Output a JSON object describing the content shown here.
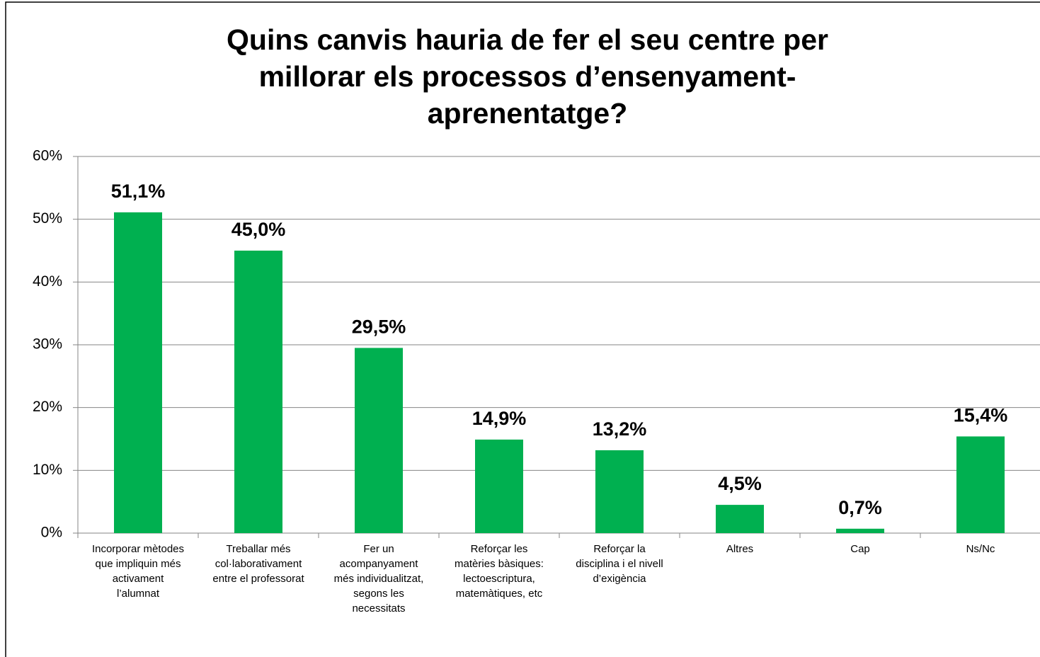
{
  "chart_data": {
    "type": "bar",
    "title": "Quins canvis hauria de fer el seu centre per\nmillorar els processos d’ensenyament-\naprenentatge?",
    "categories": [
      "Incorporar mètodes\nque impliquin més\nactivament\nl’alumnat",
      "Treballar més\ncol·laborativament\nentre el professorat",
      "Fer un\nacompanyament\nmés individualitzat,\nsegons les\nnecessitats",
      "Reforçar les\nmatèries bàsiques:\nlectoescriptura,\nmatemàtiques, etc",
      "Reforçar la\ndisciplina i el nivell\nd’exigència",
      "Altres",
      "Cap",
      "Ns/Nc"
    ],
    "values": [
      51.1,
      45.0,
      29.5,
      14.9,
      13.2,
      4.5,
      0.7,
      15.4
    ],
    "value_labels": [
      "51,1%",
      "45,0%",
      "29,5%",
      "14,9%",
      "13,2%",
      "4,5%",
      "0,7%",
      "15,4%"
    ],
    "color": "#00b050",
    "ylim": [
      0,
      60
    ],
    "yticks": [
      {
        "value": 0,
        "label": "0%"
      },
      {
        "value": 10,
        "label": "10%"
      },
      {
        "value": 20,
        "label": "20%"
      },
      {
        "value": 30,
        "label": "30%"
      },
      {
        "value": 40,
        "label": "40%"
      },
      {
        "value": 50,
        "label": "50%"
      },
      {
        "value": 60,
        "label": "60%"
      }
    ],
    "grid": true
  }
}
